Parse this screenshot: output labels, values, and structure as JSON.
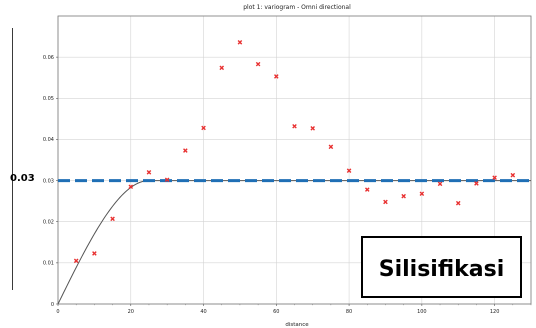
{
  "chart_data": {
    "type": "scatter",
    "title": "plot 1:  variogram - Omni directional",
    "xlabel": "distance",
    "ylabel": "",
    "xlim": [
      0,
      130
    ],
    "ylim": [
      0,
      0.07
    ],
    "x_ticks": [
      0,
      20,
      40,
      60,
      80,
      100,
      120
    ],
    "y_ticks": [
      {
        "value": 0,
        "label": "0"
      },
      {
        "value": 0.01,
        "label": "0.01"
      },
      {
        "value": 0.02,
        "label": "0.02"
      },
      {
        "value": 0.03,
        "label": "0.03"
      },
      {
        "value": 0.04,
        "label": "0.04"
      },
      {
        "value": 0.05,
        "label": "0.05"
      },
      {
        "value": 0.06,
        "label": "0.06"
      }
    ],
    "experimental_points": [
      {
        "x": 5,
        "y": 0.0105
      },
      {
        "x": 10,
        "y": 0.0123
      },
      {
        "x": 15,
        "y": 0.0207
      },
      {
        "x": 20,
        "y": 0.0285
      },
      {
        "x": 25,
        "y": 0.032
      },
      {
        "x": 30,
        "y": 0.0302
      },
      {
        "x": 35,
        "y": 0.0373
      },
      {
        "x": 40,
        "y": 0.0428
      },
      {
        "x": 45,
        "y": 0.0574
      },
      {
        "x": 50,
        "y": 0.0636
      },
      {
        "x": 55,
        "y": 0.0583
      },
      {
        "x": 60,
        "y": 0.0553
      },
      {
        "x": 65,
        "y": 0.0432
      },
      {
        "x": 70,
        "y": 0.0427
      },
      {
        "x": 75,
        "y": 0.0382
      },
      {
        "x": 80,
        "y": 0.0324
      },
      {
        "x": 85,
        "y": 0.0278
      },
      {
        "x": 90,
        "y": 0.0248
      },
      {
        "x": 95,
        "y": 0.0262
      },
      {
        "x": 100,
        "y": 0.0268
      },
      {
        "x": 105,
        "y": 0.0292
      },
      {
        "x": 110,
        "y": 0.0245
      },
      {
        "x": 115,
        "y": 0.0293
      },
      {
        "x": 120,
        "y": 0.0307
      },
      {
        "x": 125,
        "y": 0.0313
      }
    ],
    "model": {
      "type": "spherical",
      "nugget": 0,
      "sill": 0.03,
      "range": 25
    },
    "sill_label": "0.03",
    "annotation": "Silisifikasi",
    "grid": true,
    "colors": {
      "points": "#e83030",
      "model": "#555555",
      "sill_line": "#1f6fb5",
      "grid": "#d4d4d4"
    }
  }
}
